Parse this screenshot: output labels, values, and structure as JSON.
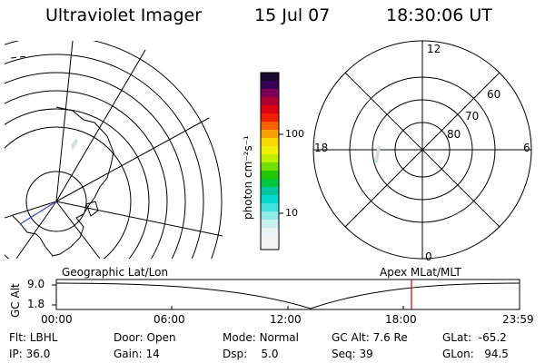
{
  "header": {
    "instrument": "Ultraviolet Imager",
    "date": "15 Jul 07",
    "time": "18:30:06 UT"
  },
  "left_panel": {
    "label": "Geographic Lat/Lon"
  },
  "right_panel": {
    "label": "Apex  MLat/MLT",
    "mlt_labels": [
      "12",
      "18",
      "6",
      "0"
    ],
    "mlat_labels": [
      "60",
      "70",
      "80"
    ]
  },
  "colorbar": {
    "unit_label": "photon cm⁻²s⁻¹",
    "ticks": [
      "100",
      "10"
    ]
  },
  "altitude_plot": {
    "ylabel": "GC Alt",
    "yticks": [
      "9.0",
      "1.8"
    ],
    "xticks": [
      "00:00",
      "06:00",
      "12:00",
      "18:00",
      "23:59"
    ],
    "marker_color": "#cc0000"
  },
  "info": {
    "row1": [
      {
        "label": "Flt:",
        "value": "LBHL"
      },
      {
        "label": "Door:",
        "value": "Open"
      },
      {
        "label": "Mode:",
        "value": "Normal"
      },
      {
        "label": "GC Alt:",
        "value": "7.6 Re"
      },
      {
        "label": "GLat:",
        "value": "-65.2"
      }
    ],
    "row2": [
      {
        "label": "IP:",
        "value": "36.0"
      },
      {
        "label": "Gain:",
        "value": "14"
      },
      {
        "label": "Dsp:",
        "value": "5.0"
      },
      {
        "label": "Seq:",
        "value": "39"
      },
      {
        "label": "GLon:",
        "value": "94.5"
      }
    ]
  }
}
